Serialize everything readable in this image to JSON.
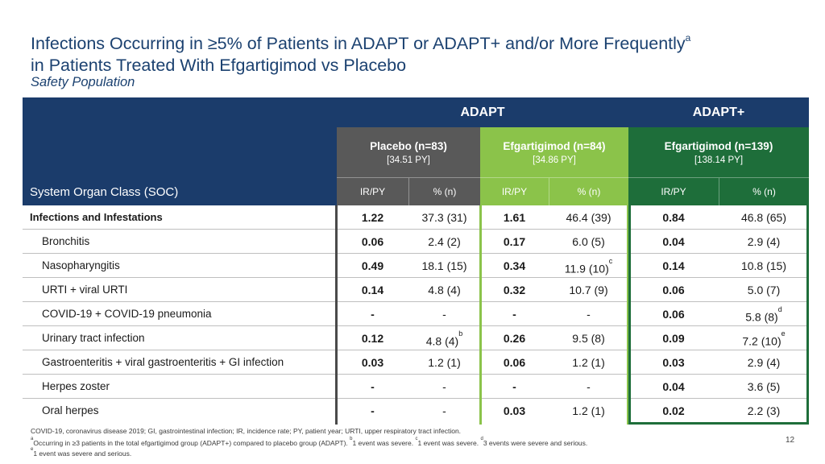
{
  "title": {
    "line1": "Infections Occurring in ≥5% of Patients in ADAPT or ADAPT+ and/or More Frequently",
    "line1_sup": "a",
    "line2": "in Patients Treated With Efgartigimod vs Placebo",
    "subtitle": "Safety Population"
  },
  "table": {
    "header": {
      "adapt": "ADAPT",
      "adapt_plus": "ADAPT+"
    },
    "groups": [
      {
        "name": "Placebo (n=83)",
        "py": "[34.51 PY]",
        "color": "#595959"
      },
      {
        "name": "Efgartigimod (n=84)",
        "py": "[34.86 PY]",
        "color": "#8bc34a"
      },
      {
        "name": "Efgartigimod (n=139)",
        "py": "[138.14 PY]",
        "color": "#1e6e3a"
      }
    ],
    "soc_header": "System Organ Class (SOC)",
    "sub_headers": [
      "IR/PY",
      "% (n)",
      "IR/PY",
      "% (n)",
      "IR/PY",
      "% (n)"
    ],
    "rows": [
      {
        "soc": "Infections and Infestations",
        "main": true,
        "cells": [
          "1.22",
          "37.3 (31)",
          "1.61",
          "46.4 (39)",
          "0.84",
          "46.8 (65)"
        ],
        "sups": [
          "",
          "",
          "",
          "",
          "",
          ""
        ]
      },
      {
        "soc": "Bronchitis",
        "main": false,
        "cells": [
          "0.06",
          "2.4 (2)",
          "0.17",
          "6.0 (5)",
          "0.04",
          "2.9 (4)"
        ],
        "sups": [
          "",
          "",
          "",
          "",
          "",
          ""
        ]
      },
      {
        "soc": "Nasopharyngitis",
        "main": false,
        "cells": [
          "0.49",
          "18.1 (15)",
          "0.34",
          "11.9 (10)",
          "0.14",
          "10.8 (15)"
        ],
        "sups": [
          "",
          "",
          "",
          "c",
          "",
          ""
        ]
      },
      {
        "soc": "URTI + viral URTI",
        "main": false,
        "cells": [
          "0.14",
          "4.8 (4)",
          "0.32",
          "10.7 (9)",
          "0.06",
          "5.0 (7)"
        ],
        "sups": [
          "",
          "",
          "",
          "",
          "",
          ""
        ]
      },
      {
        "soc": "COVID-19 + COVID-19 pneumonia",
        "main": false,
        "cells": [
          "-",
          "-",
          "-",
          "-",
          "0.06",
          "5.8 (8)"
        ],
        "sups": [
          "",
          "",
          "",
          "",
          "",
          "d"
        ]
      },
      {
        "soc": "Urinary tract infection",
        "main": false,
        "cells": [
          "0.12",
          "4.8 (4)",
          "0.26",
          "9.5 (8)",
          "0.09",
          "7.2 (10)"
        ],
        "sups": [
          "",
          "b",
          "",
          "",
          "",
          "e"
        ]
      },
      {
        "soc": "Gastroenteritis + viral gastroenteritis + GI infection",
        "main": false,
        "cells": [
          "0.03",
          "1.2 (1)",
          "0.06",
          "1.2 (1)",
          "0.03",
          "2.9 (4)"
        ],
        "sups": [
          "",
          "",
          "",
          "",
          "",
          ""
        ]
      },
      {
        "soc": "Herpes zoster",
        "main": false,
        "cells": [
          "-",
          "-",
          "-",
          "-",
          "0.04",
          "3.6 (5)"
        ],
        "sups": [
          "",
          "",
          "",
          "",
          "",
          ""
        ]
      },
      {
        "soc": "Oral herpes",
        "main": false,
        "cells": [
          "-",
          "-",
          "0.03",
          "1.2 (1)",
          "0.02",
          "2.2 (3)"
        ],
        "sups": [
          "",
          "",
          "",
          "",
          "",
          ""
        ]
      }
    ]
  },
  "footnotes": {
    "abbrev": "COVID-19, coronavirus disease 2019; GI, gastrointestinal infection; IR, incidence rate; PY, patient year; URTI, upper respiratory tract infection.",
    "a": "Occurring in ≥3 patients in the total efgartigimod group (ADAPT+) compared to placebo group (ADAPT).",
    "b": "1 event was severe.",
    "c": "1 event was severe.",
    "d": "3 events were severe and serious.",
    "e": "1 event was severe and serious.",
    "markers": {
      "a": "a",
      "b": "b",
      "c": "c",
      "d": "d",
      "e": "e"
    }
  },
  "page_number": "12"
}
